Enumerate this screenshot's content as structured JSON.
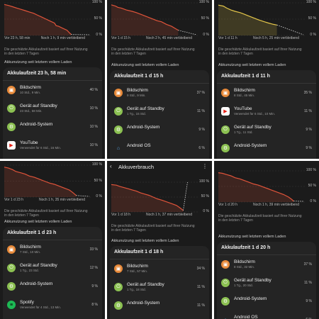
{
  "common": {
    "ticks": [
      "100 %",
      "50 %",
      "0 %"
    ],
    "description": "Die geschätzte Akkulaufzeit basiert auf Ihrer Nutzung in den letzten 7 Tagen",
    "section_title": "Akkunutzung seit letztem vollem Laden"
  },
  "colors": {
    "panel_bg": "#1b1b1b",
    "card_bg": "#242424",
    "line_orange": "#e0543a",
    "line_yellow": "#e4c64a",
    "divider": "#363636"
  },
  "panels": [
    {
      "left_label": "Vor 23 h, 58 min",
      "right_label": "Noch 1 h, 9 min verbleibend",
      "title": "Akkulaufzeit 23 h, 58 min",
      "chart_color": "orange",
      "apps": [
        {
          "icon": "display-icon",
          "name": "Bildschirm",
          "sub": "10 Std., 9 Min.",
          "pct": "40 %"
        },
        {
          "icon": "standby-icon",
          "name": "Gerät auf Standby",
          "sub": "23 Std., 58 Min.",
          "pct": "10 %"
        },
        {
          "icon": "android-system-icon",
          "name": "Android-System",
          "sub": "",
          "pct": "10 %"
        },
        {
          "icon": "youtube-icon",
          "name": "YouTube",
          "sub": "Verwendet für 6 Std., 16 Min.",
          "pct": "10 %"
        }
      ]
    },
    {
      "left_label": "Vor 1 d 15 h",
      "right_label": "Noch 2 h, 45 min verbleibend",
      "title": "Akkulaufzeit 1 d 15 h",
      "chart_color": "orange",
      "apps": [
        {
          "icon": "display-icon",
          "name": "Bildschirm",
          "sub": "9 Std., 9 Min.",
          "pct": "37 %"
        },
        {
          "icon": "standby-icon",
          "name": "Gerät auf Standby",
          "sub": "1 Tg., 15 Std.",
          "pct": "11 %"
        },
        {
          "icon": "android-system-icon",
          "name": "Android-System",
          "sub": "",
          "pct": "9 %"
        },
        {
          "icon": "android-os-icon",
          "name": "Android OS",
          "sub": "",
          "pct": "6 %"
        }
      ]
    },
    {
      "left_label": "Vor 1 d 11 h",
      "right_label": "Noch 5 h, 25 min verbleibend",
      "title": "Akkulaufzeit 1 d 11 h",
      "chart_color": "yellow",
      "apps": [
        {
          "icon": "display-icon",
          "name": "Bildschirm",
          "sub": "8 Std., 45 Min.",
          "pct": "35 %"
        },
        {
          "icon": "youtube-icon",
          "name": "YouTube",
          "sub": "Verwendet für 6 Std., 10 Min.",
          "pct": "11 %"
        },
        {
          "icon": "standby-icon",
          "name": "Gerät auf Standby",
          "sub": "1 Tg., 11 Std.",
          "pct": "9 %"
        },
        {
          "icon": "android-system-icon",
          "name": "Android-System",
          "sub": "",
          "pct": "9 %"
        }
      ]
    },
    {
      "left_label": "Vor 1 d 23 h",
      "right_label": "Noch 1 h, 35 min verbleibend",
      "title": "Akkulaufzeit 1 d 23 h",
      "chart_color": "orange",
      "apps": [
        {
          "icon": "display-icon",
          "name": "Bildschirm",
          "sub": "7 Std., 10 Min.",
          "pct": "33 %"
        },
        {
          "icon": "standby-icon",
          "name": "Gerät auf Standby",
          "sub": "1 Tg., 23 Std.",
          "pct": "12 %"
        },
        {
          "icon": "android-system-icon",
          "name": "Android-System",
          "sub": "",
          "pct": "9 %"
        },
        {
          "icon": "spotify-icon",
          "name": "Spotify",
          "sub": "Verwendet für 4 Std., 13 Min.",
          "pct": "8 %"
        }
      ]
    },
    {
      "header_title": "Akkuverbrauch",
      "left_label": "Vor 1 d 18 h",
      "right_label": "Noch 1 h, 37 min verbleibend",
      "title": "Akkulaufzeit 1 d 18 h",
      "chart_color": "orange",
      "apps": [
        {
          "icon": "display-icon",
          "name": "Bildschirm",
          "sub": "7 Std., 57 Min.",
          "pct": "34 %"
        },
        {
          "icon": "standby-icon",
          "name": "Gerät auf Standby",
          "sub": "1 Tg., 18 Std.",
          "pct": "11 %"
        },
        {
          "icon": "android-system-icon",
          "name": "Android-System",
          "sub": "",
          "pct": "11 %"
        }
      ]
    },
    {
      "left_label": "Vor 1 d 20 h",
      "right_label": "Noch 1 h, 39 min verbleibend",
      "title": "Akkulaufzeit 1 d 20 h",
      "chart_color": "orange",
      "apps": [
        {
          "icon": "display-icon",
          "name": "Bildschirm",
          "sub": "8 Std., 32 Min.",
          "pct": "37 %"
        },
        {
          "icon": "standby-icon",
          "name": "Gerät auf Standby",
          "sub": "1 Tg., 20 Std.",
          "pct": "11 %"
        },
        {
          "icon": "android-system-icon",
          "name": "Android-System",
          "sub": "",
          "pct": "9 %"
        },
        {
          "icon": "android-os-icon",
          "name": "Android OS",
          "sub": "",
          "pct": "6 %"
        }
      ]
    }
  ]
}
